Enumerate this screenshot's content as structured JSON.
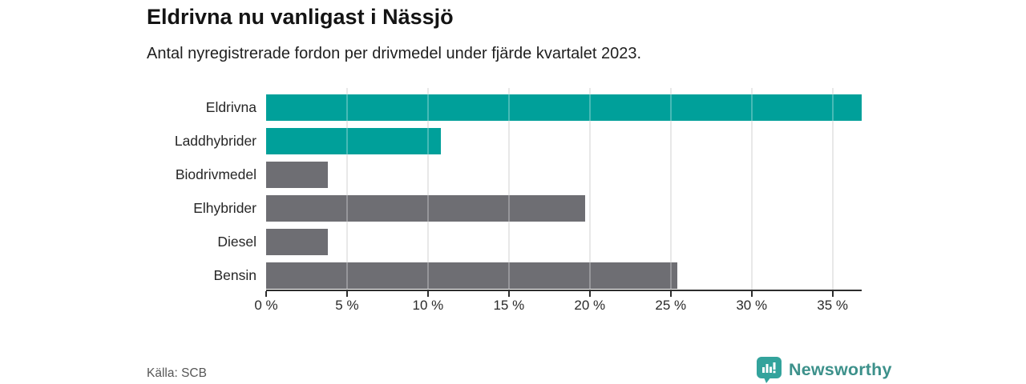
{
  "header": {
    "title": "Eldrivna nu vanligast i Nässjö",
    "subtitle": "Antal nyregistrerade fordon per drivmedel under fjärde kvartalet 2023."
  },
  "chart_data": {
    "type": "bar",
    "orientation": "horizontal",
    "title": "Eldrivna nu vanligast i Nässjö",
    "subtitle": "Antal nyregistrerade fordon per drivmedel under fjärde kvartalet 2023.",
    "categories": [
      "Eldrivna",
      "Laddhybrider",
      "Biodrivmedel",
      "Elhybrider",
      "Diesel",
      "Bensin"
    ],
    "values": [
      36.8,
      10.8,
      3.8,
      19.7,
      3.8,
      25.4
    ],
    "unit": "%",
    "bar_colors": [
      "#00a09a",
      "#00a09a",
      "#6e6e73",
      "#6e6e73",
      "#6e6e73",
      "#6e6e73"
    ],
    "x_ticks": [
      {
        "value": 0,
        "label": "0 %"
      },
      {
        "value": 5,
        "label": "5 %"
      },
      {
        "value": 10,
        "label": "10 %"
      },
      {
        "value": 15,
        "label": "15 %"
      },
      {
        "value": 20,
        "label": "20 %"
      },
      {
        "value": 25,
        "label": "25 %"
      },
      {
        "value": 30,
        "label": "30 %"
      },
      {
        "value": 35,
        "label": "35 %"
      }
    ],
    "xlim": [
      0,
      36.8
    ],
    "grid": true,
    "legend": false
  },
  "footer": {
    "source": "Källa: SCB",
    "brand": "Newsworthy"
  },
  "colors": {
    "accent": "#00a09a",
    "neutral": "#6e6e73",
    "grid": "#e0e0e0",
    "grid_overlay": "rgba(255,255,255,0.28)",
    "axis": "#2d2d2d",
    "brand_icon": "#33a39c",
    "brand_text": "#3d918b"
  }
}
